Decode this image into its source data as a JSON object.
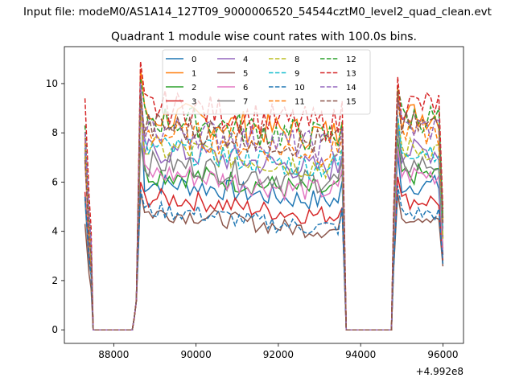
{
  "figure": {
    "suptitle": "Input file: modeM0/AS1A14_127T09_9000006520_54544cztM0_level2_quad_clean.evt"
  },
  "chart_data": {
    "type": "line",
    "title": "Quadrant 1 module wise count rates with 100.0s bins.",
    "xlabel": "",
    "ylabel": "",
    "x_offset_label": "+4.992e8",
    "xlim": [
      86800,
      96500
    ],
    "ylim": [
      -0.55,
      11.5
    ],
    "xticks": [
      88000,
      90000,
      92000,
      94000,
      96000
    ],
    "yticks": [
      0,
      2,
      4,
      6,
      8,
      10
    ],
    "legend_location": "upper-center",
    "legend_columns": 4,
    "bin_seconds": 100.0,
    "segments": [
      {
        "x_start": 87300,
        "x_end": 87500,
        "off_until": 88450,
        "ramp": 88550
      },
      {
        "x_start": 88650,
        "x_end": 93550,
        "off_after": 93650,
        "off_until": 94750
      },
      {
        "x_start": 94850,
        "x_end": 96000
      }
    ],
    "colors": [
      "#1f77b4",
      "#ff7f0e",
      "#2ca02c",
      "#d62728",
      "#9467bd",
      "#8c564b",
      "#e377c2",
      "#7f7f7f",
      "#bcbd22",
      "#17becf",
      "#1f77b4",
      "#ff7f0e",
      "#2ca02c",
      "#d62728",
      "#9467bd",
      "#8c564b"
    ],
    "dashed": [
      false,
      false,
      false,
      false,
      false,
      false,
      false,
      false,
      true,
      true,
      true,
      true,
      true,
      true,
      true,
      true
    ],
    "series": [
      {
        "name": "0",
        "level": 5.6,
        "first_peak": 9.6,
        "start": 7.2
      },
      {
        "name": "1",
        "level": 8.3,
        "first_peak": 10.6,
        "start": 7.8
      },
      {
        "name": "2",
        "level": 6.0,
        "first_peak": 9.8,
        "start": 7.0
      },
      {
        "name": "3",
        "level": 5.0,
        "first_peak": 6.0,
        "start": 5.6
      },
      {
        "name": "4",
        "level": 6.9,
        "first_peak": 9.9,
        "start": 7.3
      },
      {
        "name": "5",
        "level": 4.4,
        "first_peak": 5.6,
        "start": 4.3
      },
      {
        "name": "6",
        "level": 6.0,
        "first_peak": 9.2,
        "start": 6.8
      },
      {
        "name": "7",
        "level": 6.4,
        "first_peak": 7.6,
        "start": 5.3
      },
      {
        "name": "8",
        "level": 7.0,
        "first_peak": 8.8,
        "start": 7.0
      },
      {
        "name": "9",
        "level": 7.0,
        "first_peak": 9.4,
        "start": 7.4
      },
      {
        "name": "10",
        "level": 4.5,
        "first_peak": 5.7,
        "start": 5.4
      },
      {
        "name": "11",
        "level": 7.6,
        "first_peak": 9.4,
        "start": 7.6
      },
      {
        "name": "12",
        "level": 8.2,
        "first_peak": 10.2,
        "start": 8.3
      },
      {
        "name": "13",
        "level": 8.7,
        "first_peak": 10.9,
        "start": 9.4
      },
      {
        "name": "14",
        "level": 7.8,
        "first_peak": 10.0,
        "start": 8.0
      },
      {
        "name": "15",
        "level": 7.9,
        "first_peak": 9.6,
        "start": 6.9
      }
    ]
  }
}
